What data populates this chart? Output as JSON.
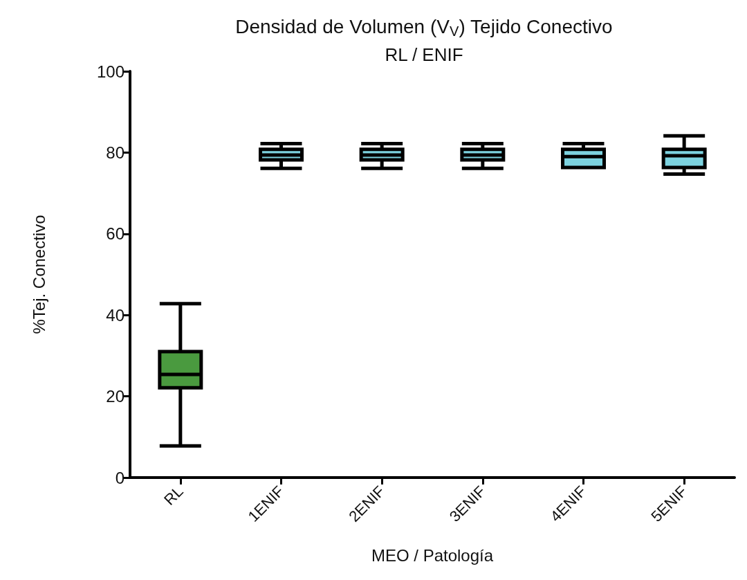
{
  "chart_data": {
    "type": "box",
    "title": "Densidad de Volumen (V$_{V}$) Tejido Conectivo",
    "subtitle": "RL / ENIF",
    "xlabel": "MEO / Patología",
    "ylabel": "%Tej. Conectivo",
    "categories": [
      "RL",
      "1ENIF",
      "2ENIF",
      "3ENIF",
      "4ENIF",
      "5ENIF"
    ],
    "boxes": [
      {
        "low": 7.8,
        "q1": 22.1,
        "median": 25.4,
        "q3": 31.0,
        "high": 42.8
      },
      {
        "low": 76.1,
        "q1": 78.2,
        "median": 79.4,
        "q3": 80.8,
        "high": 82.2
      },
      {
        "low": 76.1,
        "q1": 78.2,
        "median": 79.4,
        "q3": 80.8,
        "high": 82.2
      },
      {
        "low": 76.1,
        "q1": 78.2,
        "median": 79.4,
        "q3": 80.8,
        "high": 82.2
      },
      {
        "low": 76.3,
        "q1": 76.3,
        "median": 79.0,
        "q3": 80.8,
        "high": 82.2
      },
      {
        "low": 74.7,
        "q1": 76.3,
        "median": 79.2,
        "q3": 80.8,
        "high": 84.1
      }
    ],
    "colors": [
      "#4a9a3f",
      "#7dd3e0",
      "#7dd3e0",
      "#7dd3e0",
      "#7dd3e0",
      "#7dd3e0"
    ],
    "ylim": [
      0,
      100
    ],
    "yticks": [
      0,
      20,
      40,
      60,
      80,
      100
    ],
    "grid": false
  }
}
